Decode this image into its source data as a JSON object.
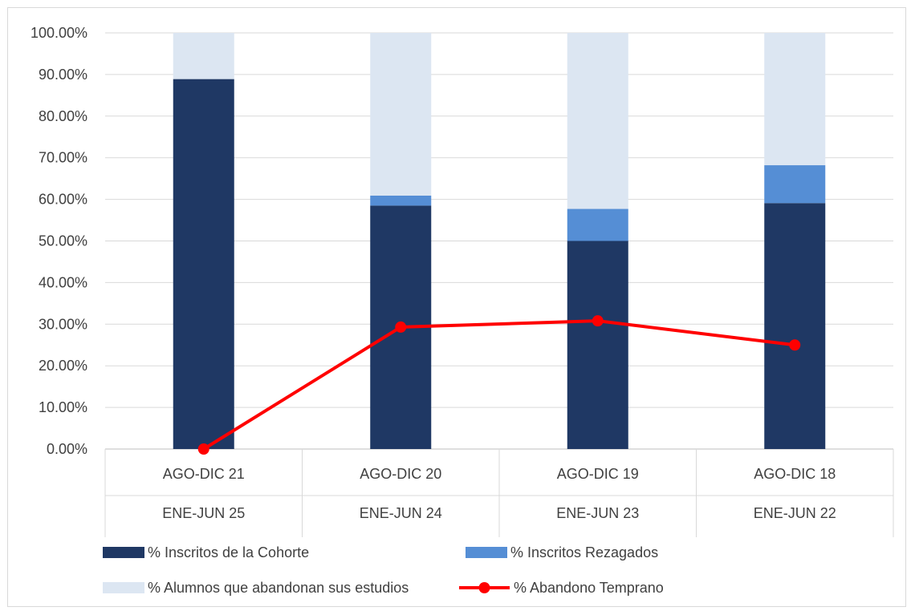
{
  "chart_data": {
    "type": "bar",
    "stacked": true,
    "categories": [
      {
        "top": "AGO-DIC 21",
        "bottom": "ENE-JUN 25"
      },
      {
        "top": "AGO-DIC 20",
        "bottom": "ENE-JUN 24"
      },
      {
        "top": "AGO-DIC 19",
        "bottom": "ENE-JUN 23"
      },
      {
        "top": "AGO-DIC 18",
        "bottom": "ENE-JUN 22"
      }
    ],
    "series": [
      {
        "name": "% Inscritos de la Cohorte",
        "kind": "bar",
        "color": "#1f3864",
        "values": [
          88.9,
          58.5,
          50.0,
          59.1
        ]
      },
      {
        "name": "% Inscritos Rezagados",
        "kind": "bar",
        "color": "#558ed5",
        "values": [
          0.0,
          2.4,
          7.7,
          9.1
        ]
      },
      {
        "name": "% Alumnos que abandonan sus estudios",
        "kind": "bar",
        "color": "#dce6f2",
        "values": [
          11.1,
          39.1,
          42.3,
          31.8
        ]
      },
      {
        "name": "% Abandono Temprano",
        "kind": "line",
        "color": "#ff0000",
        "values": [
          0.0,
          29.3,
          30.8,
          25.0
        ]
      }
    ],
    "y_ticks": [
      "0.00%",
      "10.00%",
      "20.00%",
      "30.00%",
      "40.00%",
      "50.00%",
      "60.00%",
      "70.00%",
      "80.00%",
      "90.00%",
      "100.00%"
    ],
    "ylim": [
      0,
      100
    ],
    "grid": true,
    "legend_position": "bottom",
    "title": "",
    "xlabel": "",
    "ylabel": ""
  }
}
